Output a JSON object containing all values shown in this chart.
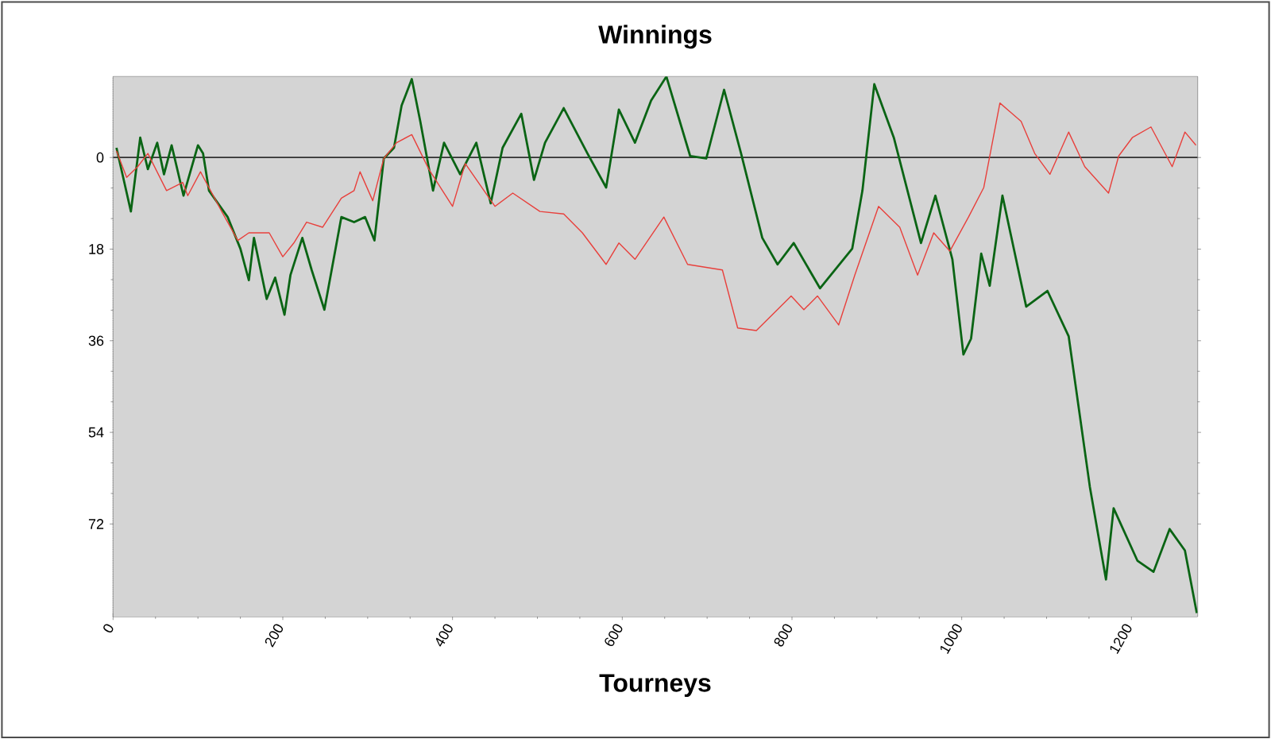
{
  "chart_data": {
    "type": "line",
    "title": "Winnings",
    "xlabel": "Tourneys",
    "xlim": [
      0,
      1278
    ],
    "xticks": [
      0,
      200,
      400,
      600,
      800,
      1000,
      1200
    ],
    "ylim": [
      -90.2,
      15.9
    ],
    "yticks": [
      {
        "value": -72,
        "label": "72"
      },
      {
        "value": -54,
        "label": "54"
      },
      {
        "value": -36,
        "label": "36"
      },
      {
        "value": -18,
        "label": "18"
      },
      0
    ],
    "grid": true,
    "marker": "none",
    "line_style": "solid",
    "ref_lines": [
      {
        "axis": "y",
        "value": 0,
        "color": "#303030"
      }
    ],
    "series": [
      {
        "color": "#0a6414",
        "x": [
          4,
          21,
          32,
          41,
          52,
          60,
          69,
          83,
          100,
          106,
          113,
          135,
          150,
          160,
          166,
          181,
          191,
          202,
          209,
          223,
          234,
          249,
          269,
          284,
          297,
          308,
          319,
          331,
          340,
          352,
          362,
          377,
          390,
          409,
          428,
          445,
          459,
          481,
          496,
          509,
          531,
          559,
          581,
          596,
          615,
          634,
          652,
          680,
          699,
          720,
          740,
          765,
          783,
          802,
          833,
          871,
          883,
          897,
          920,
          952,
          969,
          989,
          1002,
          1011,
          1023,
          1033,
          1048,
          1076,
          1101,
          1126,
          1151,
          1170,
          1179,
          1207,
          1226,
          1245,
          1263,
          1277
        ],
        "values": [
          1.9,
          -10.6,
          3.9,
          -2.3,
          2.9,
          -3.3,
          2.4,
          -7.5,
          2.4,
          0.8,
          -6.5,
          -11.7,
          -17.9,
          -24.1,
          -15.8,
          -27.8,
          -23.6,
          -30.9,
          -23.1,
          -15.8,
          -22.1,
          -29.9,
          -11.7,
          -12.7,
          -11.7,
          -16.3,
          -0.2,
          1.9,
          10.2,
          15.4,
          7.1,
          -6.5,
          2.9,
          -3.3,
          2.9,
          -9.0,
          1.9,
          8.6,
          -4.4,
          2.9,
          9.7,
          0.8,
          -5.9,
          9.4,
          2.9,
          11.2,
          15.9,
          0.3,
          -0.2,
          13.3,
          0.8,
          -15.8,
          -21.0,
          -16.8,
          -25.7,
          -17.9,
          -6.5,
          14.4,
          3.9,
          -16.8,
          -7.5,
          -20.0,
          -38.7,
          -35.6,
          -18.9,
          -25.2,
          -7.5,
          -29.3,
          -26.2,
          -35.1,
          -64.7,
          -82.9,
          -68.9,
          -79.2,
          -81.4,
          -73.0,
          -77.2,
          -89.5
        ]
      },
      {
        "color": "#e8403c",
        "x": [
          4,
          16,
          29,
          41,
          63,
          82,
          88,
          103,
          128,
          147,
          160,
          184,
          200,
          213,
          228,
          247,
          269,
          284,
          291,
          306,
          319,
          334,
          352,
          372,
          400,
          415,
          450,
          471,
          503,
          531,
          553,
          581,
          596,
          615,
          649,
          677,
          718,
          736,
          758,
          799,
          814,
          830,
          855,
          874,
          902,
          927,
          948,
          967,
          986,
          1008,
          1026,
          1045,
          1070,
          1086,
          1104,
          1126,
          1145,
          1173,
          1185,
          1201,
          1223,
          1248,
          1263,
          1276
        ],
        "values": [
          1.3,
          -3.9,
          -1.8,
          0.8,
          -6.5,
          -4.9,
          -7.5,
          -2.8,
          -10.6,
          -16.3,
          -14.8,
          -14.8,
          -19.5,
          -16.8,
          -12.7,
          -13.7,
          -8.0,
          -6.5,
          -2.8,
          -8.5,
          -0.2,
          2.9,
          4.5,
          -2.3,
          -9.6,
          -1.2,
          -9.6,
          -7.0,
          -10.6,
          -11.1,
          -14.8,
          -21.0,
          -16.8,
          -20.0,
          -11.7,
          -21.0,
          -22.1,
          -33.5,
          -34.0,
          -27.2,
          -29.9,
          -27.2,
          -32.9,
          -23.1,
          -9.6,
          -13.7,
          -23.1,
          -14.8,
          -18.4,
          -11.7,
          -5.9,
          10.7,
          7.1,
          0.8,
          -3.3,
          5.0,
          -1.8,
          -7.0,
          0.3,
          3.9,
          6.0,
          -1.8,
          5.0,
          2.4
        ]
      }
    ]
  }
}
